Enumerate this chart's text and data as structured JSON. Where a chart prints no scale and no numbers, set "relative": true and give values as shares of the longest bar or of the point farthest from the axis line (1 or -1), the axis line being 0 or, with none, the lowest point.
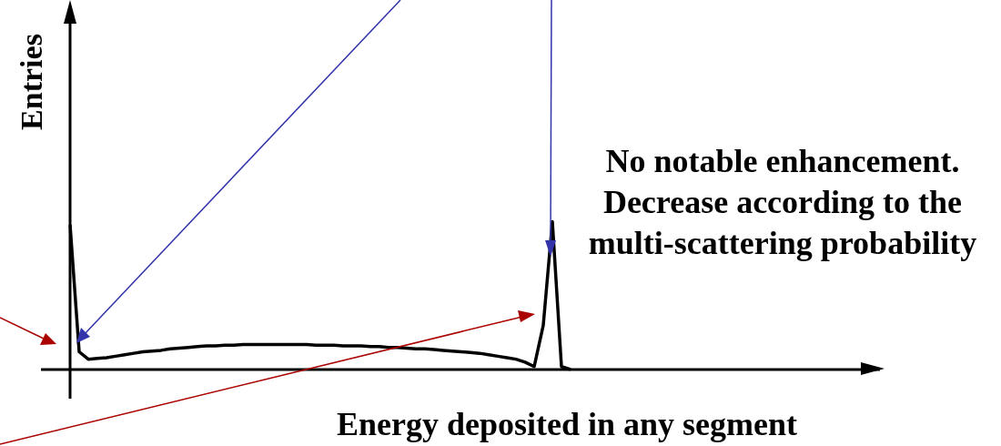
{
  "chart_data": {
    "type": "line",
    "relative": true,
    "xlabel": "Energy deposited in any segment",
    "ylabel": "Entries",
    "annotations": [
      "No notable enhancement. Decrease according to the multi-scattering probability"
    ],
    "categories": [
      null,
      null,
      null,
      null,
      null,
      null,
      null,
      null,
      null,
      null,
      null,
      null,
      null,
      null,
      null,
      null,
      null,
      null,
      null,
      null,
      null,
      null,
      null,
      null,
      null,
      null,
      null,
      null,
      null,
      null,
      null,
      null,
      null,
      null,
      null,
      null,
      null,
      null,
      null,
      null,
      null,
      null,
      null,
      null,
      null,
      null,
      null,
      null,
      null,
      null,
      null,
      null,
      null,
      null,
      null,
      null,
      null,
      null,
      null,
      null,
      null,
      null,
      null,
      null,
      null,
      null,
      null,
      null,
      null,
      null,
      null,
      null,
      null,
      null,
      null,
      null,
      null,
      null,
      null,
      null,
      null,
      null,
      null,
      null,
      null,
      null,
      null,
      null,
      null,
      null
    ],
    "series": [
      {
        "color": "#000000",
        "values": [
          0.98,
          0.12,
          0.07,
          0.075,
          0.08,
          0.09,
          0.1,
          0.11,
          0.12,
          0.125,
          0.13,
          0.14,
          0.145,
          0.15,
          0.155,
          0.16,
          0.16,
          0.165,
          0.165,
          0.17,
          0.17,
          0.17,
          0.17,
          0.17,
          0.17,
          0.17,
          0.17,
          0.165,
          0.165,
          0.165,
          0.16,
          0.16,
          0.16,
          0.155,
          0.155,
          0.15,
          0.15,
          0.145,
          0.14,
          0.14,
          0.135,
          0.13,
          0.125,
          0.12,
          0.115,
          0.11,
          0.1,
          0.09,
          0.08,
          0.07,
          0.05,
          0.02,
          0.3,
          1,
          0.02,
          0,
          null,
          null,
          null,
          null,
          null,
          null,
          null,
          null,
          null,
          null,
          null,
          null,
          null,
          null,
          null,
          null,
          null,
          null,
          null,
          null,
          null,
          null,
          null,
          null,
          null,
          null,
          null,
          null,
          null,
          null,
          null,
          null,
          null,
          null
        ]
      }
    ],
    "legend": false,
    "grid": false,
    "marker": "none",
    "line_style": "solid"
  }
}
